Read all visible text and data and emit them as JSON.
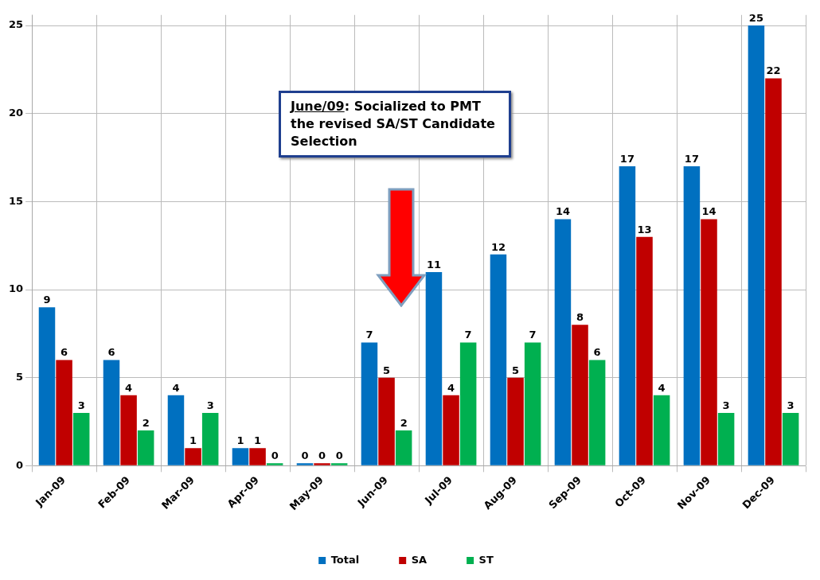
{
  "chart_data": {
    "type": "bar",
    "categories": [
      "Jan-09",
      "Feb-09",
      "Mar-09",
      "Apr-09",
      "May-09",
      "Jun-09",
      "Jul-09",
      "Aug-09",
      "Sep-09",
      "Oct-09",
      "Nov-09",
      "Dec-09"
    ],
    "series": [
      {
        "name": "Total",
        "color": "#0070c0",
        "values": [
          9,
          6,
          4,
          1,
          0,
          7,
          11,
          12,
          14,
          17,
          17,
          25
        ]
      },
      {
        "name": "SA",
        "color": "#c00000",
        "values": [
          6,
          4,
          1,
          1,
          0,
          5,
          4,
          5,
          8,
          13,
          14,
          22
        ]
      },
      {
        "name": "ST",
        "color": "#00b050",
        "values": [
          3,
          2,
          3,
          0,
          0,
          2,
          7,
          7,
          6,
          4,
          3,
          3
        ]
      }
    ],
    "ylim": [
      0,
      25.6
    ],
    "yticks": [
      0,
      5,
      10,
      15,
      20,
      25
    ],
    "grid": true,
    "legend": "bottom",
    "data_labels": true,
    "annotations": [
      "June/09: Socialized to PMT the revised SA/ST Candidate Selection"
    ]
  }
}
